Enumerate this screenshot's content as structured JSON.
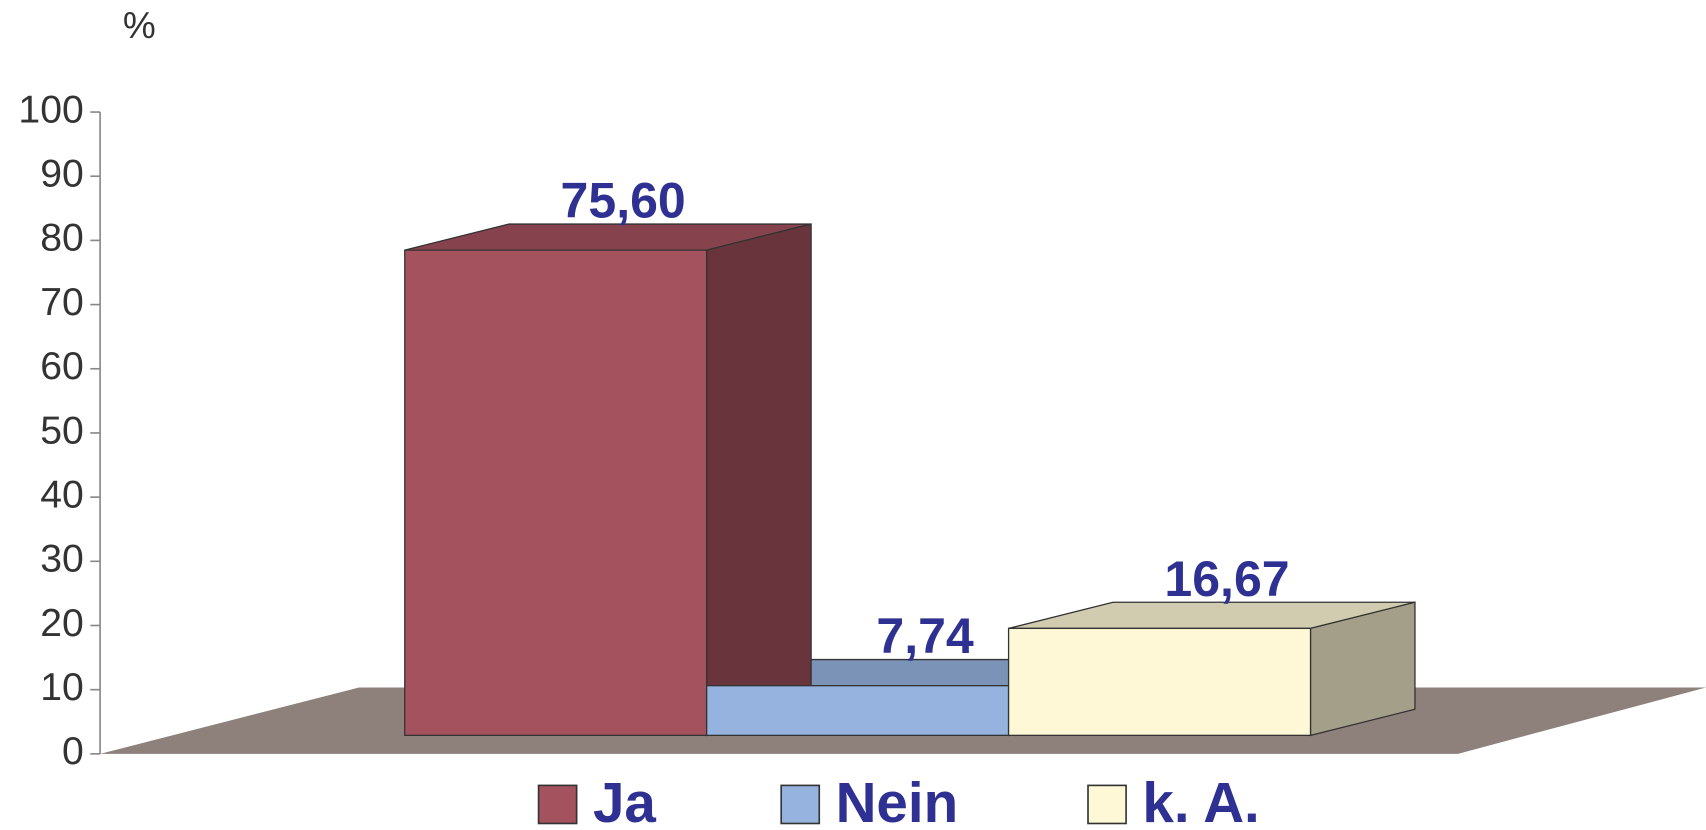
{
  "chart_data": {
    "type": "bar3d",
    "y_label": "%",
    "series": [
      {
        "name": "Ja",
        "color": "#a4525e",
        "values": [
          75.6
        ],
        "value_labels": [
          "75,60"
        ]
      },
      {
        "name": "Nein",
        "color": "#95b3de",
        "values": [
          7.74
        ],
        "value_labels": [
          "7,74"
        ]
      },
      {
        "name": "k. A.",
        "color": "#fff8d6",
        "values": [
          16.67
        ],
        "value_labels": [
          "16,67"
        ]
      }
    ],
    "ylim": [
      0,
      100
    ],
    "yticks": [
      0,
      10,
      20,
      30,
      40,
      50,
      60,
      70,
      80,
      90,
      100
    ],
    "legend": "bottom"
  }
}
